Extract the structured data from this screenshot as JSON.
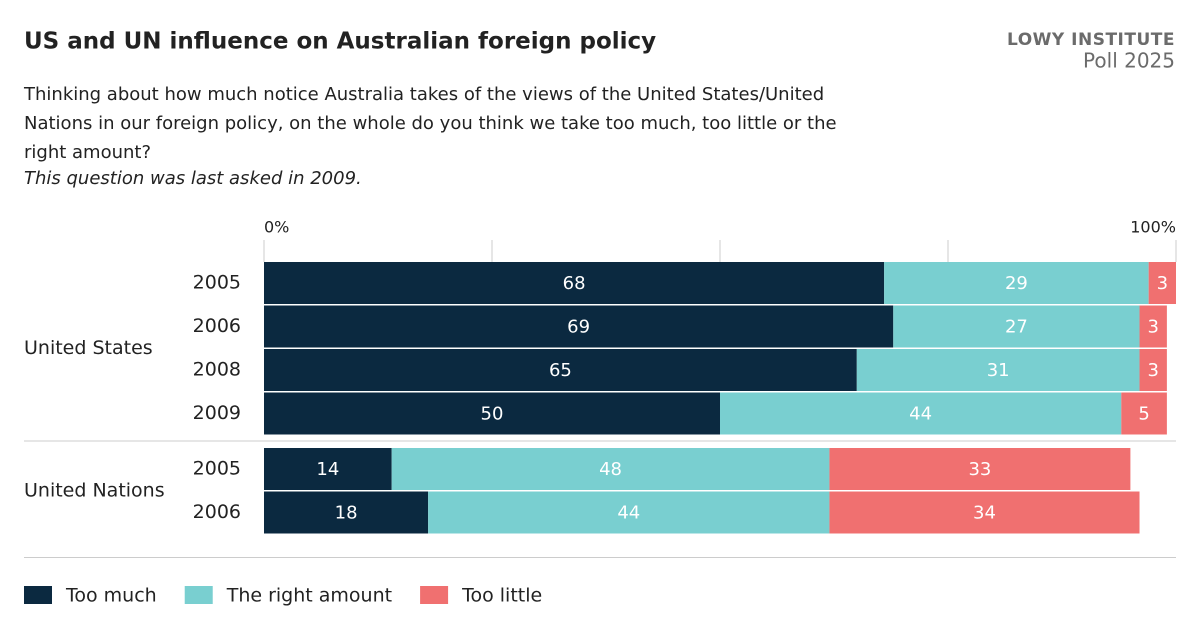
{
  "chart_data": {
    "type": "stacked-bar-horizontal",
    "title": "US and UN influence on Australian foreign policy",
    "subtitle": "Thinking about how much notice Australia takes of the views of the United States/United Nations in our foreign policy, on the whole do you think we take too much, too little or the right amount?",
    "note": "This question was last asked in 2009.",
    "logo": "LOWY INSTITUTE",
    "logo_sub": "Poll 2025",
    "groups": [
      {
        "name": "United States",
        "categories": [
          "2005",
          "2006",
          "2008",
          "2009"
        ]
      },
      {
        "name": "United Nations",
        "categories": [
          "2005",
          "2006"
        ]
      }
    ],
    "series": [
      {
        "name": "Too much",
        "color": "#0b2940",
        "values": [
          68,
          69,
          65,
          50,
          14,
          18
        ]
      },
      {
        "name": "The right amount",
        "color": "#79cfd0",
        "values": [
          29,
          27,
          31,
          44,
          48,
          44
        ]
      },
      {
        "name": "Too little",
        "color": "#f07070",
        "values": [
          3,
          3,
          3,
          5,
          33,
          34
        ]
      }
    ],
    "xlim": [
      0,
      100
    ],
    "xticks": [
      {
        "value": 0,
        "label": "0%"
      },
      {
        "value": 25,
        "label": null
      },
      {
        "value": 50,
        "label": null
      },
      {
        "value": 75,
        "label": null
      },
      {
        "value": 100,
        "label": "100%"
      }
    ],
    "grid": true
  }
}
